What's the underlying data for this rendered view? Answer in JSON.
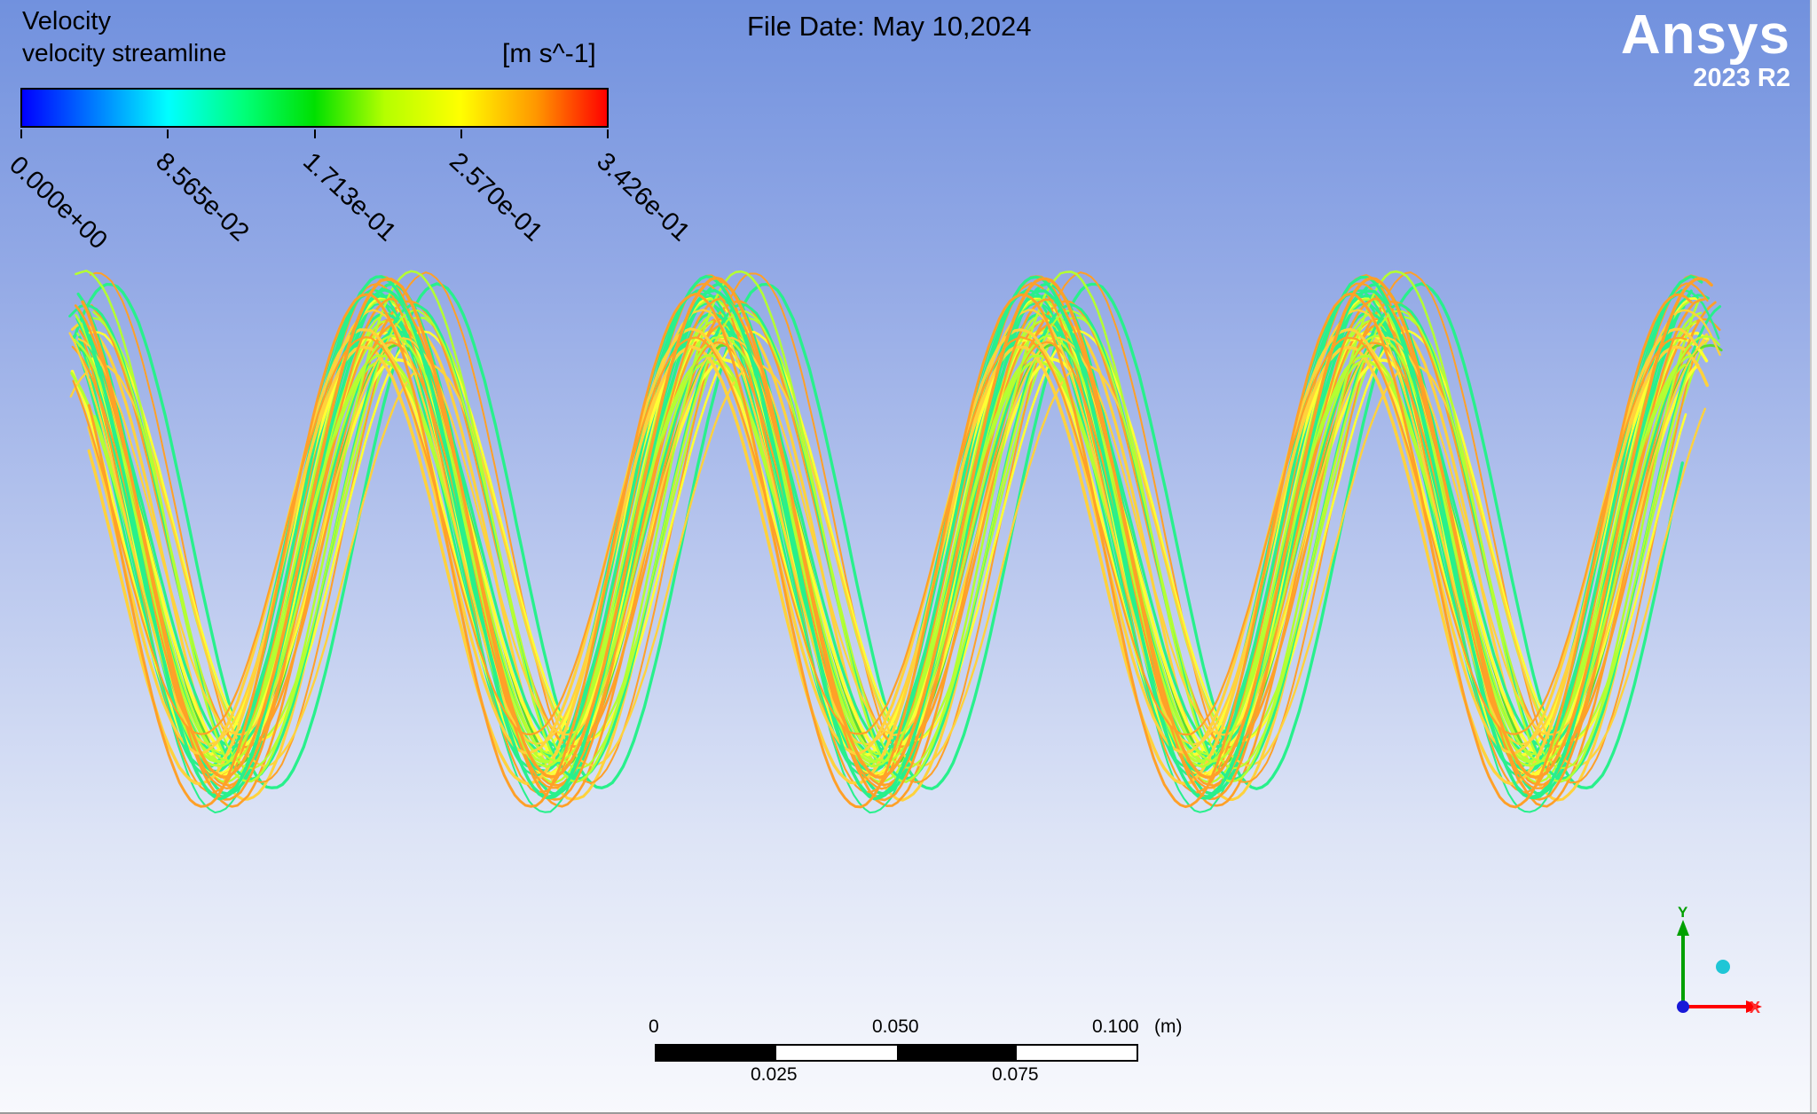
{
  "legend": {
    "title": "Velocity",
    "subtitle": "velocity streamline",
    "unit": "[m s^-1]",
    "colormap": [
      "#0000ff",
      "#00ffff",
      "#00e000",
      "#ffff00",
      "#ff0000"
    ],
    "ticks": [
      "0.000e+00",
      "8.565e-02",
      "1.713e-01",
      "2.570e-01",
      "3.426e-01"
    ]
  },
  "file_date": "File Date: May 10,2024",
  "logo": {
    "name": "Ansys",
    "version": "2023 R2"
  },
  "scale": {
    "top_labels": [
      "0",
      "0.050",
      "0.100"
    ],
    "unit": "(m)",
    "bottom_labels": [
      "0.025",
      "0.075"
    ]
  },
  "axes": {
    "y_label": "Y",
    "x_label": "X",
    "y_color": "#00a000",
    "x_color": "#ff0000"
  },
  "streamlines": {
    "periods": 5,
    "line_count": 46,
    "dominant_colors": [
      "#ffff33",
      "#ffd23c",
      "#ffa028",
      "#b4ff32",
      "#5adc32",
      "#28f08c"
    ]
  }
}
